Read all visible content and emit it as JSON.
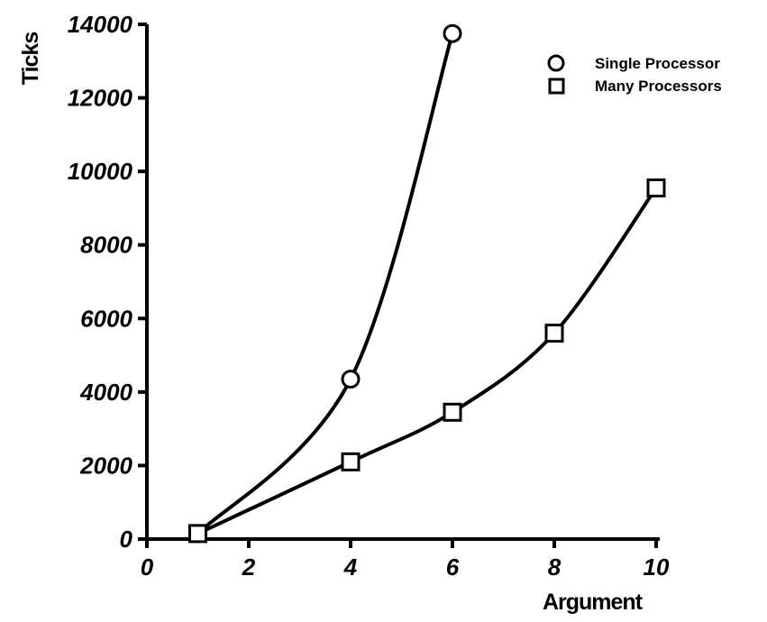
{
  "chart_data": {
    "type": "line",
    "title": "",
    "xlabel": "Argument",
    "ylabel": "Ticks",
    "xlim": [
      0,
      10
    ],
    "ylim": [
      0,
      14000
    ],
    "xticks": [
      "0",
      "2",
      "4",
      "6",
      "8",
      "10"
    ],
    "yticks": [
      "0",
      "2000",
      "4000",
      "6000",
      "8000",
      "10000",
      "12000",
      "14000"
    ],
    "grid": false,
    "legend_position": "top-right",
    "series": [
      {
        "name": "Single Processor",
        "marker": "circle",
        "x": [
          1,
          4,
          6
        ],
        "y": [
          150,
          4350,
          13750
        ]
      },
      {
        "name": "Many Processors",
        "marker": "square",
        "x": [
          1,
          4,
          6,
          8,
          10
        ],
        "y": [
          150,
          2100,
          3450,
          5600,
          9550
        ]
      }
    ]
  }
}
